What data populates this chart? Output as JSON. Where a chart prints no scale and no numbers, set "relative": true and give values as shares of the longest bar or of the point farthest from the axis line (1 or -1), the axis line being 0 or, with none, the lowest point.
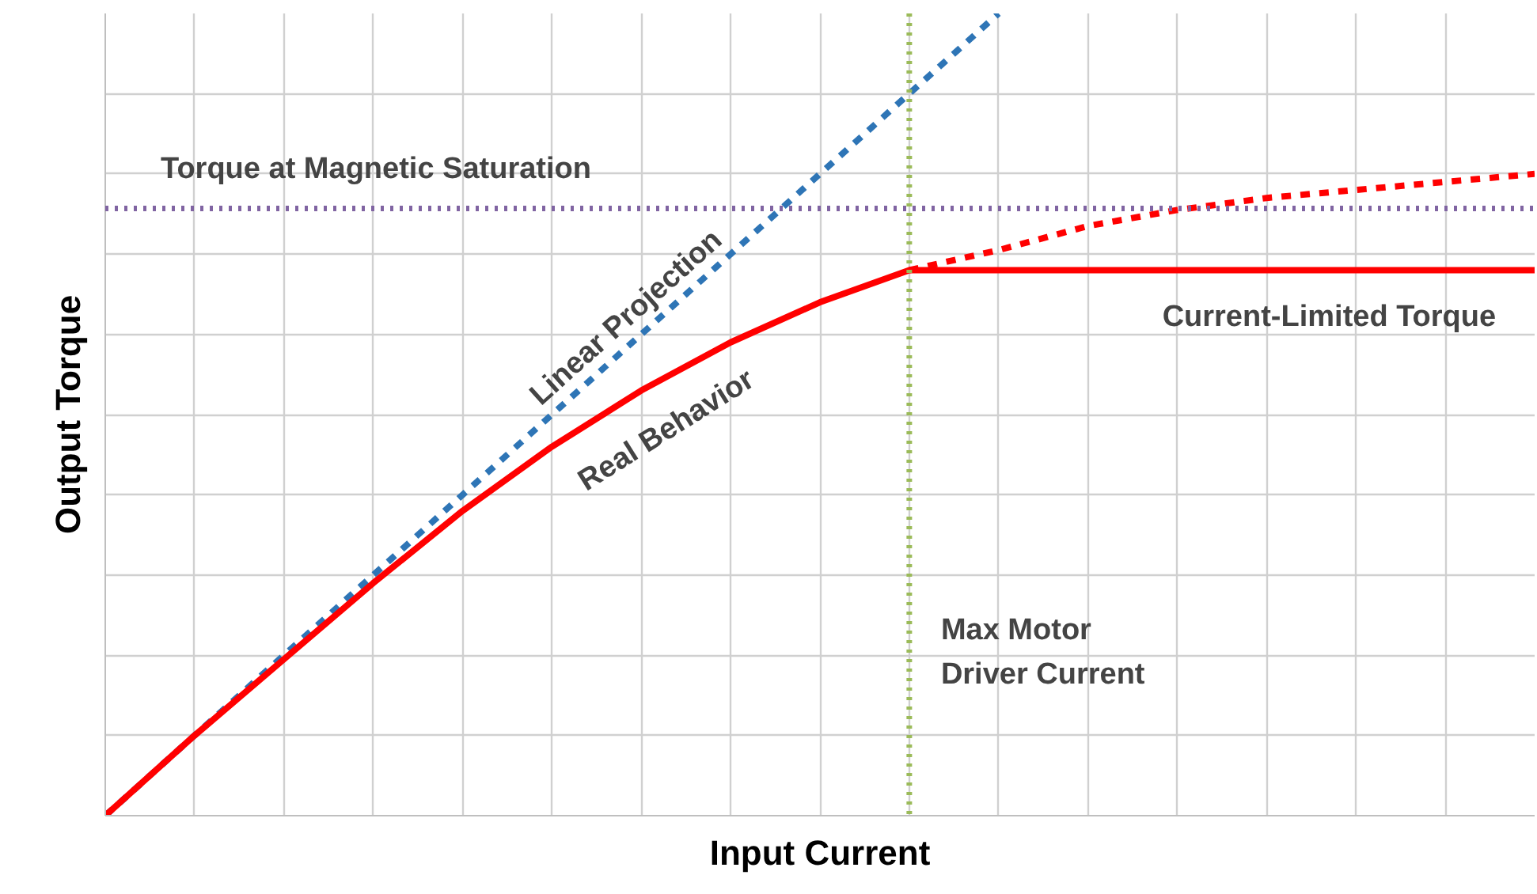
{
  "chart_data": {
    "type": "line",
    "relative": true,
    "xlabel": "Input Current",
    "ylabel": "Output Torque",
    "grid": true,
    "categories": [
      null,
      null,
      null,
      null,
      null,
      null,
      null,
      null,
      null,
      null,
      null,
      null,
      null,
      null,
      null,
      null,
      null
    ],
    "series": [
      {
        "name": "Linear Projection",
        "color": "#2e75b6",
        "line_style": "dashed",
        "values": [
          0,
          0.1,
          0.2,
          0.3,
          0.4,
          0.5,
          0.6,
          0.7,
          0.8,
          0.9,
          1.0,
          null,
          null,
          null,
          null,
          null,
          null
        ]
      },
      {
        "name": "Real Behavior",
        "color": "#ff0000",
        "line_style": "solid",
        "values": [
          0,
          0.1,
          0.195,
          0.29,
          0.38,
          0.46,
          0.53,
          0.59,
          0.64,
          0.68,
          0.68,
          0.68,
          0.68,
          0.68,
          0.68,
          0.68,
          0.68
        ]
      },
      {
        "color": "#ff0000",
        "line_style": "dashed",
        "values": [
          null,
          null,
          null,
          null,
          null,
          null,
          null,
          null,
          null,
          0.68,
          0.705,
          0.735,
          0.755,
          0.77,
          0.78,
          0.79,
          0.8
        ]
      }
    ],
    "annotations": [
      "Max Motor Driver Current",
      "Current-Limited Torque"
    ],
    "ref_lines": [
      {
        "axis": "y",
        "value": 0.757,
        "label": "Torque at Magnetic Saturation",
        "color": "#8064a2",
        "line_style": "dotted"
      }
    ]
  }
}
